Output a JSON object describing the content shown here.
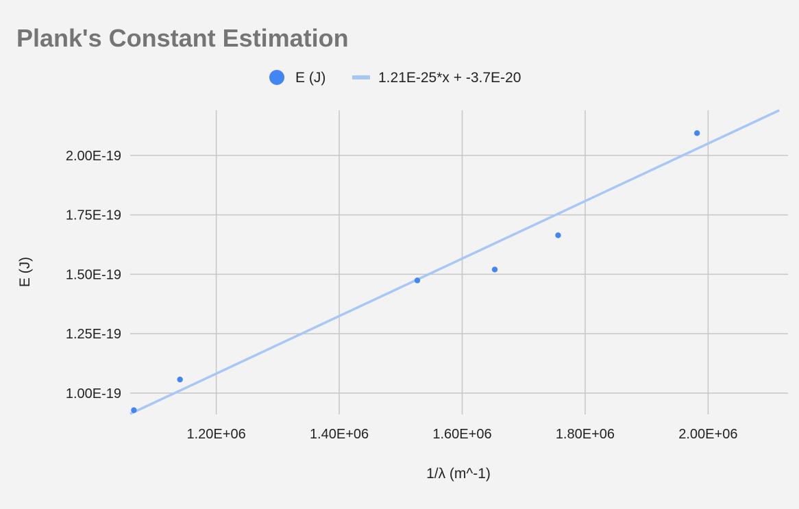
{
  "chart_data": {
    "type": "scatter",
    "title": "Plank's Constant Estimation",
    "xlabel": "1/λ (m^-1)",
    "ylabel": "E (J)",
    "xlim": [
      1060000,
      2130000
    ],
    "ylim": [
      9.1e-20,
      2.19e-19
    ],
    "x_ticks": [
      {
        "value": 1200000,
        "label": "1.20E+06"
      },
      {
        "value": 1400000,
        "label": "1.40E+06"
      },
      {
        "value": 1600000,
        "label": "1.60E+06"
      },
      {
        "value": 1800000,
        "label": "1.80E+06"
      },
      {
        "value": 2000000,
        "label": "2.00E+06"
      }
    ],
    "y_ticks": [
      {
        "value": 1e-19,
        "label": "1.00E-19"
      },
      {
        "value": 1.25e-19,
        "label": "1.25E-19"
      },
      {
        "value": 1.5e-19,
        "label": "1.50E-19"
      },
      {
        "value": 1.75e-19,
        "label": "1.75E-19"
      },
      {
        "value": 2e-19,
        "label": "2.00E-19"
      }
    ],
    "grid": true,
    "legend_position": "top-center",
    "series": [
      {
        "name": "E (J)",
        "color": "#4285f4",
        "points": [
          {
            "x": 1066000,
            "y": 9.28e-20
          },
          {
            "x": 1141000,
            "y": 1.057e-19
          },
          {
            "x": 1527000,
            "y": 1.474e-19
          },
          {
            "x": 1653000,
            "y": 1.52e-19
          },
          {
            "x": 1756000,
            "y": 1.664e-19
          },
          {
            "x": 1982000,
            "y": 2.094e-19
          }
        ]
      }
    ],
    "trendline": {
      "label": "1.21E-25*x + -3.7E-20",
      "slope": 1.21e-25,
      "intercept": -3.7e-20,
      "color": "#a7c7f7"
    }
  }
}
